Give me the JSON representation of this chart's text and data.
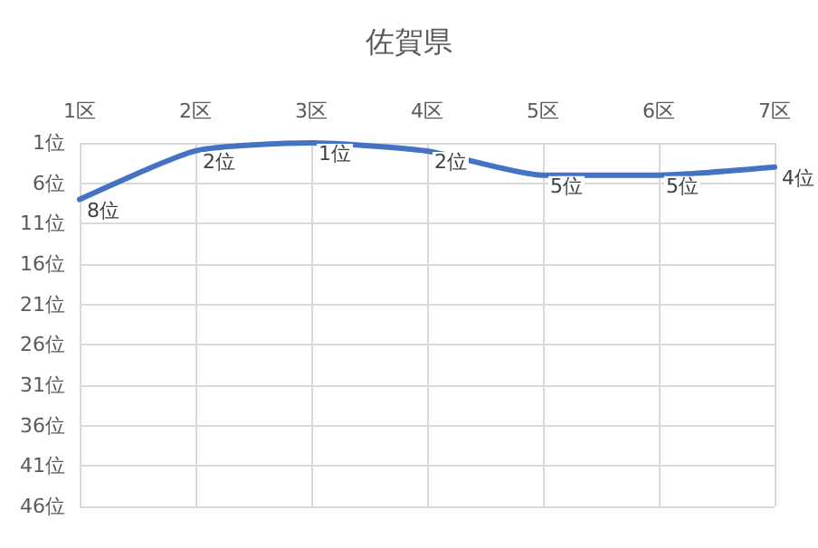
{
  "chart_data": {
    "type": "line",
    "title": "佐賀県",
    "categories": [
      "1区",
      "2区",
      "3区",
      "4区",
      "5区",
      "6区",
      "7区"
    ],
    "series": [
      {
        "color": "#4472c4",
        "values": [
          8,
          2,
          1,
          2,
          5,
          5,
          4
        ],
        "value_labels": [
          "8位",
          "2位",
          "1位",
          "2位",
          "5位",
          "5位",
          "4位"
        ]
      }
    ],
    "ylim": [
      46,
      1
    ],
    "yticks": [
      {
        "value": 1,
        "label": "1位"
      },
      {
        "value": 6,
        "label": "6位"
      },
      {
        "value": 11,
        "label": "11位"
      },
      {
        "value": 16,
        "label": "16位"
      },
      {
        "value": 21,
        "label": "21位"
      },
      {
        "value": 26,
        "label": "26位"
      },
      {
        "value": 31,
        "label": "31位"
      },
      {
        "value": 36,
        "label": "36位"
      },
      {
        "value": 41,
        "label": "41位"
      },
      {
        "value": 46,
        "label": "46位"
      }
    ],
    "grid": true,
    "marker": "none",
    "line_style": "solid"
  }
}
